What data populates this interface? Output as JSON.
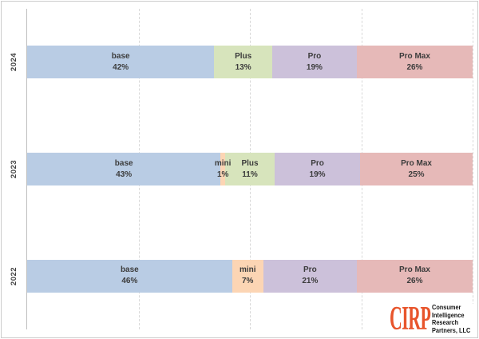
{
  "chart_data": {
    "type": "bar",
    "subtype": "100-percent-stacked-horizontal",
    "title": "",
    "categories": [
      "2024",
      "2023",
      "2022"
    ],
    "segment_names": [
      "base",
      "mini",
      "Plus",
      "Pro",
      "Pro Max"
    ],
    "series": [
      {
        "name": "base",
        "values": [
          42,
          43,
          46
        ]
      },
      {
        "name": "mini",
        "values": [
          0,
          1,
          7
        ]
      },
      {
        "name": "Plus",
        "values": [
          13,
          11,
          0
        ]
      },
      {
        "name": "Pro",
        "values": [
          19,
          19,
          21
        ]
      },
      {
        "name": "Pro Max",
        "values": [
          26,
          25,
          26
        ]
      }
    ],
    "xlim": [
      0,
      100
    ],
    "grid": "vertical dashed lines at 25%, 50%, 75%, 100%",
    "legend_position": "none (labels inside segments)"
  },
  "axis": {
    "ticks_pct": [
      25,
      50,
      75,
      100
    ]
  },
  "colors": {
    "base": "#b9cce4",
    "mini": "#fcd5b4",
    "plus": "#d7e4bc",
    "pro": "#ccc1da",
    "pro_max": "#e6b9b8",
    "gridline": "#d9d9d9",
    "axis_line": "#bfbfbf",
    "bar_label_text": "#3c3c3c",
    "year_label_text": "#404040"
  },
  "rows": [
    {
      "year": "2024",
      "segments": [
        {
          "label": "base",
          "pct": "42%",
          "value": 42,
          "color": "#b9cce4"
        },
        {
          "label": "Plus",
          "pct": "13%",
          "value": 13,
          "color": "#d7e4bc"
        },
        {
          "label": "Pro",
          "pct": "19%",
          "value": 19,
          "color": "#ccc1da"
        },
        {
          "label": "Pro Max",
          "pct": "26%",
          "value": 26,
          "color": "#e6b9b8"
        }
      ]
    },
    {
      "year": "2023",
      "segments": [
        {
          "label": "base",
          "pct": "43%",
          "value": 43,
          "color": "#b9cce4"
        },
        {
          "label": "mini",
          "pct": "1%",
          "value": 1,
          "color": "#fcd5b4"
        },
        {
          "label": "Plus",
          "pct": "11%",
          "value": 11,
          "color": "#d7e4bc"
        },
        {
          "label": "Pro",
          "pct": "19%",
          "value": 19,
          "color": "#ccc1da"
        },
        {
          "label": "Pro Max",
          "pct": "25%",
          "value": 25,
          "color": "#e6b9b8"
        }
      ]
    },
    {
      "year": "2022",
      "segments": [
        {
          "label": "base",
          "pct": "46%",
          "value": 46,
          "color": "#b9cce4"
        },
        {
          "label": "mini",
          "pct": "7%",
          "value": 7,
          "color": "#fcd5b4"
        },
        {
          "label": "Pro",
          "pct": "21%",
          "value": 21,
          "color": "#ccc1da"
        },
        {
          "label": "Pro Max",
          "pct": "26%",
          "value": 26,
          "color": "#e6b9b8"
        }
      ]
    }
  ],
  "logo": {
    "acronym": "CIRP",
    "lines": [
      "Consumer",
      "Intelligence",
      "Research",
      "Partners, LLC"
    ],
    "accent_color": "#e8552c",
    "text_color": "#141414"
  }
}
